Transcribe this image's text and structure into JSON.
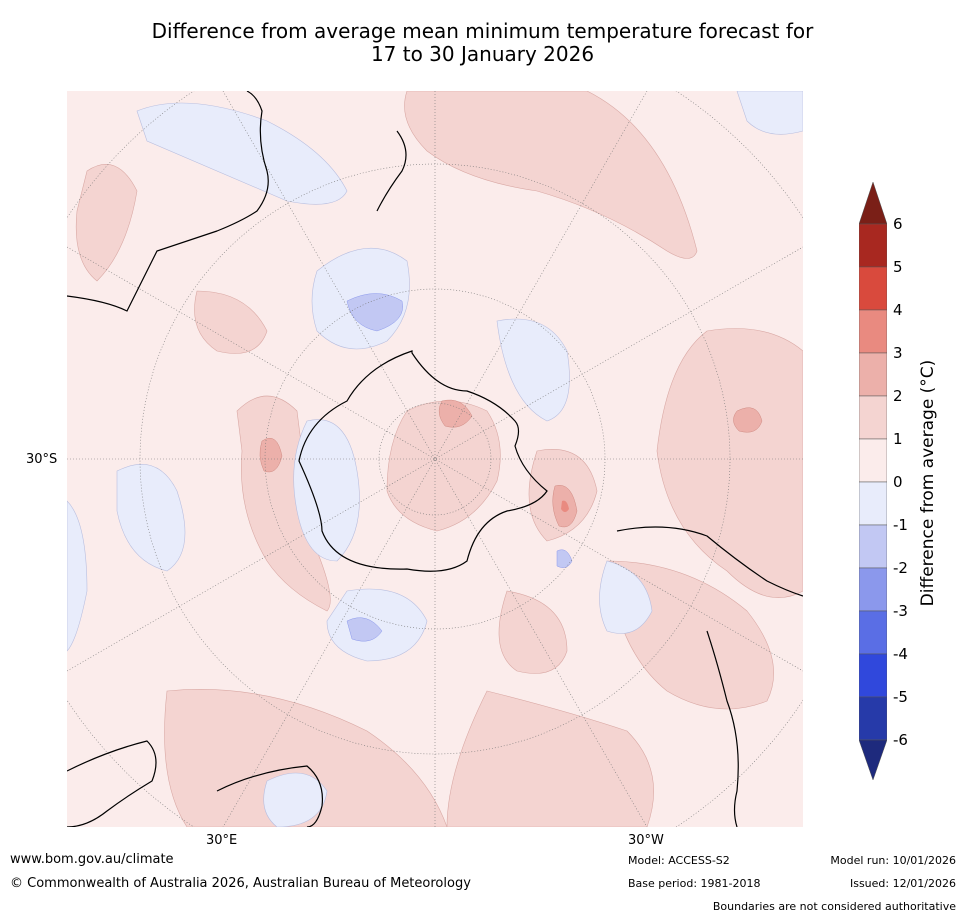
{
  "title_line1": "Difference from average mean minimum temperature forecast for",
  "title_line2": "17 to 30 January 2026",
  "map": {
    "projection": "south-polar stereographic",
    "lat_label": "30°S",
    "lon_labels": [
      "30°E",
      "30°W"
    ]
  },
  "colorbar": {
    "label": "Difference from average (°C)",
    "ticks": [
      "6",
      "5",
      "4",
      "3",
      "2",
      "1",
      "0",
      "-1",
      "-2",
      "-3",
      "-4",
      "-5",
      "-6"
    ],
    "colors": {
      "gt6": "#7a1f17",
      "5to6": "#a82820",
      "4to5": "#d94a3d",
      "3to4": "#e98a80",
      "2to3": "#ecb0aa",
      "1to2": "#f4d4d1",
      "0to1": "#fbeceb",
      "m1to0": "#e8ecfb",
      "m2tom1": "#c2c8f3",
      "m3tom2": "#8b98ec",
      "m4tom3": "#5a6ee5",
      "m5tom4": "#3048dc",
      "m6tom5": "#263aa9",
      "ltm6": "#1e2a7d"
    }
  },
  "footer": {
    "website": "www.bom.gov.au/climate",
    "copyright": "© Commonwealth of Australia 2026, Australian Bureau of Meteorology",
    "model": "Model: ACCESS-S2",
    "base_period": "Base period: 1981-2018",
    "model_run": "Model run: 10/01/2026",
    "issued": "Issued: 12/01/2026",
    "disclaimer": "Boundaries are not considered authoritative"
  }
}
